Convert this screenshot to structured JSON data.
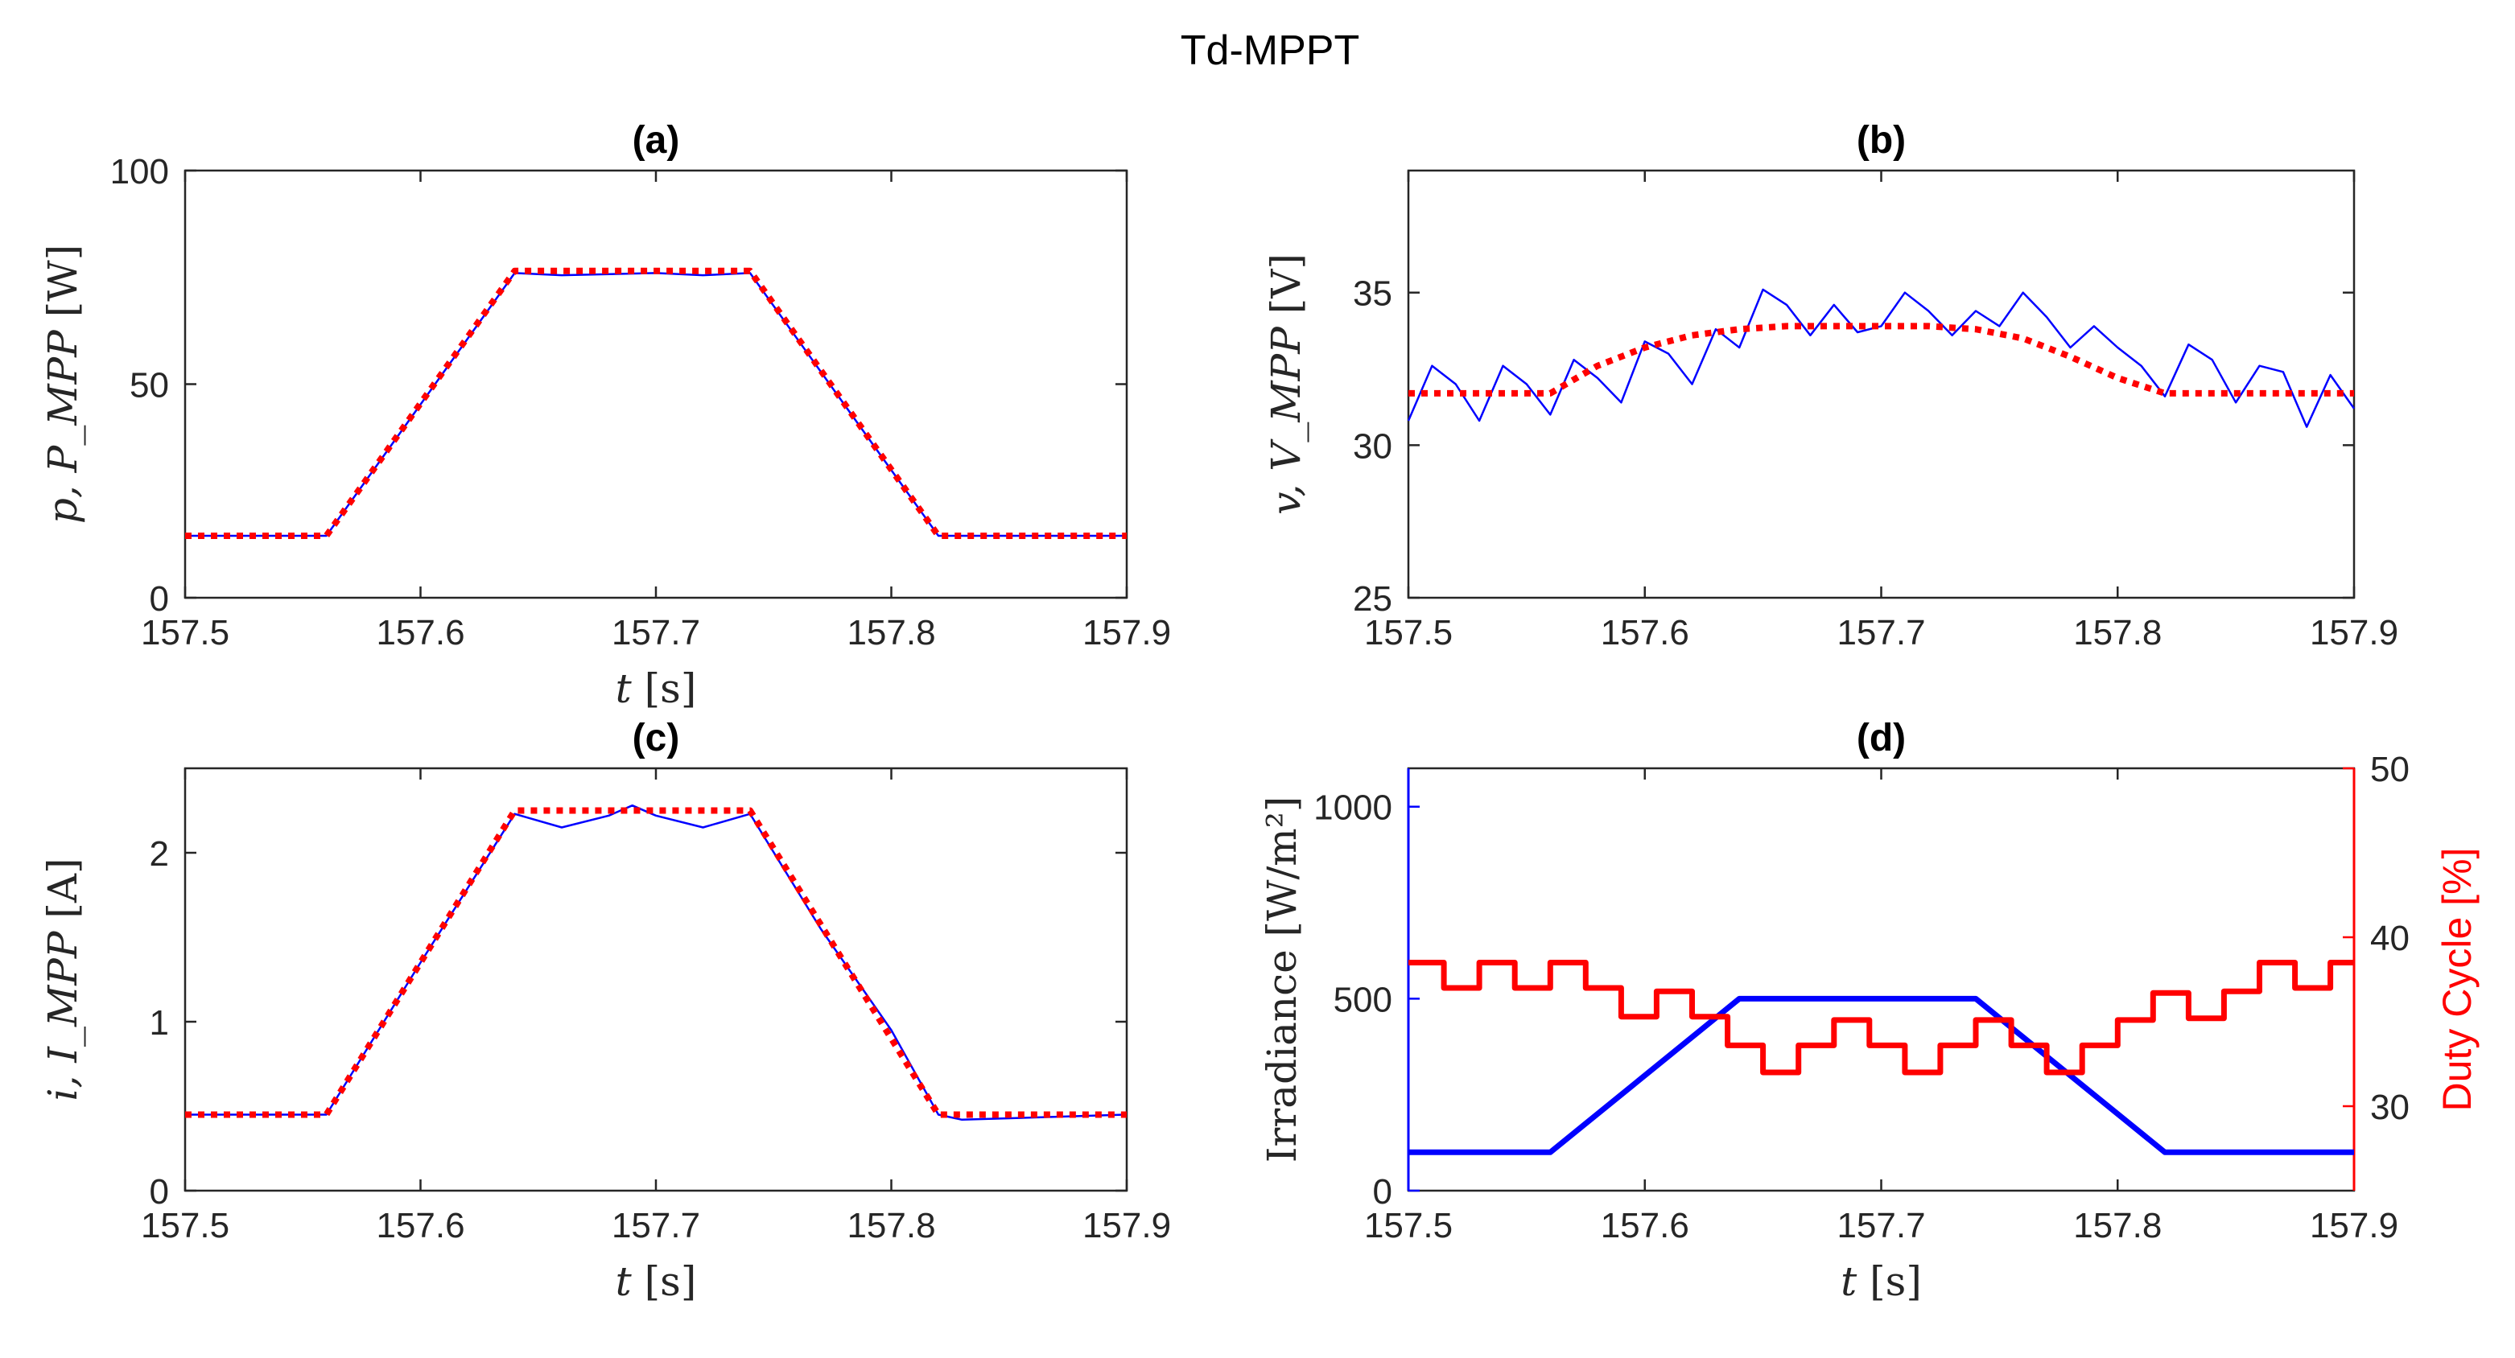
{
  "figure_title": "Td-MPPT",
  "chart_data": [
    {
      "id": "a",
      "type": "line",
      "title": "(a)",
      "xlabel": "t [s]",
      "ylabel": "p, P_MPP [W]",
      "xlim": [
        157.5,
        157.9
      ],
      "ylim": [
        0,
        100
      ],
      "xticks": [
        157.5,
        157.6,
        157.7,
        157.8,
        157.9
      ],
      "yticks": [
        0,
        50,
        100
      ],
      "xtick_labels": [
        "157.5",
        "157.6",
        "157.7",
        "157.8",
        "157.9"
      ],
      "ytick_labels": [
        "0",
        "50",
        "100"
      ],
      "series": [
        {
          "name": "p",
          "color": "#0000ff",
          "style": "solid",
          "x": [
            157.5,
            157.56,
            157.64,
            157.66,
            157.7,
            157.72,
            157.74,
            157.82,
            157.9
          ],
          "y": [
            14.5,
            14.5,
            76,
            75.5,
            76,
            75.5,
            76,
            14.5,
            14.5
          ]
        },
        {
          "name": "P_MPP",
          "color": "#ff0000",
          "style": "dotted",
          "x": [
            157.5,
            157.56,
            157.64,
            157.74,
            157.82,
            157.9
          ],
          "y": [
            14.5,
            14.5,
            76.5,
            76.5,
            14.5,
            14.5
          ]
        }
      ]
    },
    {
      "id": "b",
      "type": "line",
      "title": "(b)",
      "xlabel": "",
      "ylabel": "v, V_MPP [V]",
      "xlim": [
        157.5,
        157.9
      ],
      "ylim": [
        25,
        39
      ],
      "xticks": [
        157.5,
        157.6,
        157.7,
        157.8,
        157.9
      ],
      "yticks": [
        25,
        30,
        35
      ],
      "xtick_labels": [
        "157.5",
        "157.6",
        "157.7",
        "157.8",
        "157.9"
      ],
      "ytick_labels": [
        "25",
        "30",
        "35"
      ],
      "series": [
        {
          "name": "v",
          "color": "#0000ff",
          "style": "solid",
          "x": [
            157.5,
            157.51,
            157.52,
            157.53,
            157.54,
            157.55,
            157.56,
            157.57,
            157.58,
            157.59,
            157.6,
            157.61,
            157.62,
            157.63,
            157.64,
            157.65,
            157.66,
            157.67,
            157.68,
            157.69,
            157.7,
            157.71,
            157.72,
            157.73,
            157.74,
            157.75,
            157.76,
            157.77,
            157.78,
            157.79,
            157.8,
            157.81,
            157.82,
            157.83,
            157.84,
            157.85,
            157.86,
            157.87,
            157.88,
            157.89,
            157.9
          ],
          "y": [
            30.8,
            32.6,
            32.0,
            30.8,
            32.6,
            32.0,
            31.0,
            32.8,
            32.2,
            31.4,
            33.4,
            33.0,
            32.0,
            33.8,
            33.2,
            35.1,
            34.6,
            33.6,
            34.6,
            33.7,
            33.9,
            35.0,
            34.4,
            33.6,
            34.4,
            33.9,
            35.0,
            34.2,
            33.2,
            33.9,
            33.2,
            32.6,
            31.6,
            33.3,
            32.8,
            31.4,
            32.6,
            32.4,
            30.6,
            32.3,
            31.2
          ]
        },
        {
          "name": "V_MPP",
          "color": "#ff0000",
          "style": "dotted",
          "x": [
            157.5,
            157.56,
            157.58,
            157.6,
            157.62,
            157.64,
            157.66,
            157.72,
            157.74,
            157.76,
            157.78,
            157.8,
            157.82,
            157.9
          ],
          "y": [
            31.7,
            31.7,
            32.6,
            33.2,
            33.6,
            33.8,
            33.9,
            33.9,
            33.8,
            33.5,
            32.9,
            32.2,
            31.7,
            31.7
          ]
        }
      ]
    },
    {
      "id": "c",
      "type": "line",
      "title": "(c)",
      "xlabel": "t [s]",
      "ylabel": "i, I_MPP [A]",
      "xlim": [
        157.5,
        157.9
      ],
      "ylim": [
        0,
        2.5
      ],
      "xticks": [
        157.5,
        157.6,
        157.7,
        157.8,
        157.9
      ],
      "yticks": [
        0,
        1,
        2
      ],
      "xtick_labels": [
        "157.5",
        "157.6",
        "157.7",
        "157.8",
        "157.9"
      ],
      "ytick_labels": [
        "0",
        "1",
        "2"
      ],
      "series": [
        {
          "name": "i",
          "color": "#0000ff",
          "style": "solid",
          "x": [
            157.5,
            157.56,
            157.6,
            157.64,
            157.66,
            157.68,
            157.69,
            157.7,
            157.72,
            157.74,
            157.77,
            157.8,
            157.82,
            157.83,
            157.9
          ],
          "y": [
            0.45,
            0.45,
            1.35,
            2.23,
            2.15,
            2.22,
            2.28,
            2.22,
            2.15,
            2.23,
            1.55,
            0.95,
            0.45,
            0.42,
            0.45
          ]
        },
        {
          "name": "I_MPP",
          "color": "#ff0000",
          "style": "dotted",
          "x": [
            157.5,
            157.56,
            157.64,
            157.74,
            157.82,
            157.9
          ],
          "y": [
            0.45,
            0.45,
            2.25,
            2.25,
            0.45,
            0.45
          ]
        }
      ]
    },
    {
      "id": "d",
      "type": "line",
      "title": "(d)",
      "xlabel": "t [s]",
      "ylabel": "Irradiance [W/m²]",
      "ylabel_right": "Duty Cycle [%]",
      "xlim": [
        157.5,
        157.9
      ],
      "ylim": [
        0,
        1100
      ],
      "ylim_right": [
        25,
        50
      ],
      "xticks": [
        157.5,
        157.6,
        157.7,
        157.8,
        157.9
      ],
      "yticks": [
        0,
        500,
        1000
      ],
      "yticks_right": [
        30,
        40,
        50
      ],
      "xtick_labels": [
        "157.5",
        "157.6",
        "157.7",
        "157.8",
        "157.9"
      ],
      "ytick_labels": [
        "0",
        "500",
        "1000"
      ],
      "ytick_labels_right": [
        "30",
        "40",
        "50"
      ],
      "series": [
        {
          "name": "Irradiance",
          "axis": "left",
          "color": "#0000ff",
          "style": "solid",
          "x": [
            157.5,
            157.56,
            157.64,
            157.74,
            157.82,
            157.9
          ],
          "y": [
            100,
            100,
            500,
            500,
            100,
            100
          ]
        },
        {
          "name": "Duty Cycle",
          "axis": "right",
          "color": "#ff0000",
          "style": "step",
          "x": [
            157.5,
            157.515,
            157.53,
            157.545,
            157.56,
            157.575,
            157.59,
            157.605,
            157.62,
            157.635,
            157.65,
            157.665,
            157.68,
            157.695,
            157.71,
            157.725,
            157.74,
            157.755,
            157.77,
            157.785,
            157.8,
            157.815,
            157.83,
            157.845,
            157.86,
            157.875,
            157.89,
            157.9
          ],
          "y": [
            38.5,
            37,
            38.5,
            37,
            38.5,
            37,
            35.3,
            36.8,
            35.3,
            33.6,
            32,
            33.6,
            35.1,
            33.6,
            32,
            33.6,
            35.1,
            33.6,
            32,
            33.6,
            35.1,
            36.7,
            35.2,
            36.8,
            38.5,
            37,
            38.5,
            38.5
          ]
        }
      ]
    }
  ]
}
